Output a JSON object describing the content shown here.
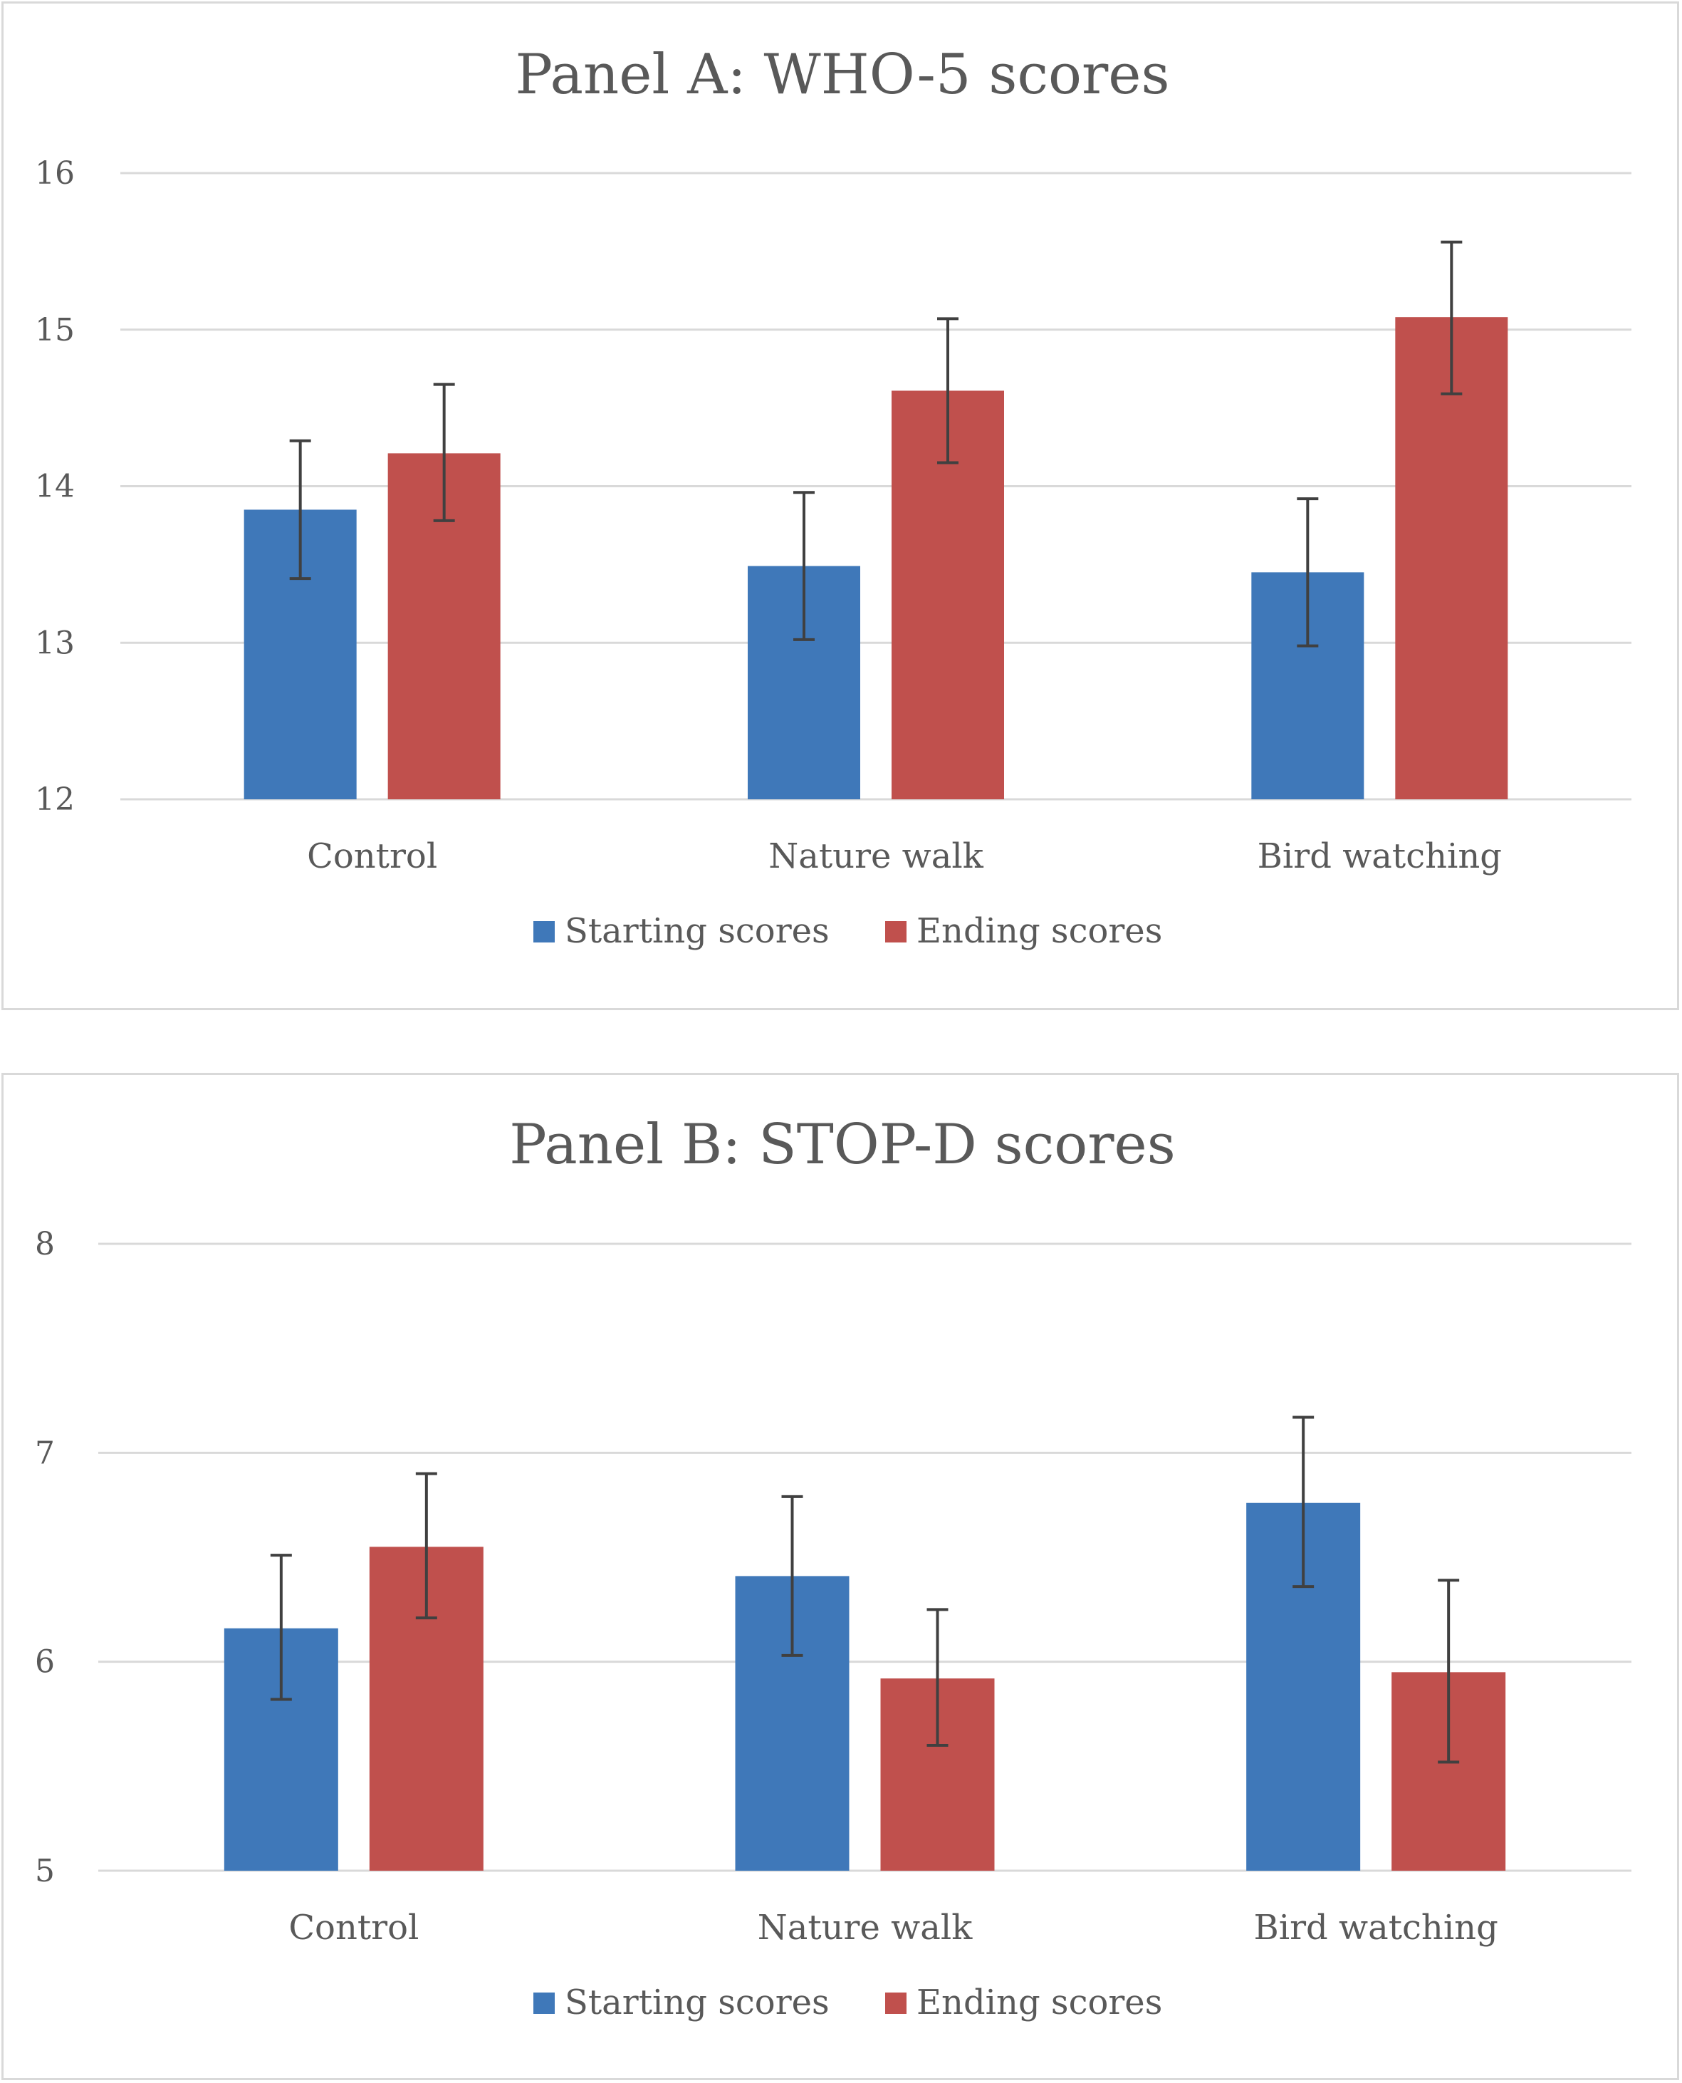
{
  "chart_data": [
    {
      "type": "bar",
      "title": "Panel A: WHO-5 scores",
      "categories": [
        "Control",
        "Nature walk",
        "Bird watching"
      ],
      "series": [
        {
          "name": "Starting scores",
          "color": "#3f78b9",
          "values": [
            13.85,
            13.49,
            13.45
          ],
          "error_low": [
            13.41,
            13.02,
            12.98
          ],
          "error_high": [
            14.29,
            13.96,
            13.92
          ]
        },
        {
          "name": "Ending scores",
          "color": "#c0504d",
          "values": [
            14.21,
            14.61,
            15.08
          ],
          "error_low": [
            13.78,
            14.15,
            14.59
          ],
          "error_high": [
            14.65,
            15.07,
            15.56
          ]
        }
      ],
      "ylim": [
        12,
        16
      ],
      "yticks": [
        "12",
        "13",
        "14",
        "15",
        "16"
      ],
      "ytick_values": [
        12,
        13,
        14,
        15,
        16
      ],
      "grid": true,
      "legend": "bottom"
    },
    {
      "type": "bar",
      "title": "Panel B: STOP-D scores",
      "categories": [
        "Control",
        "Nature walk",
        "Bird watching"
      ],
      "series": [
        {
          "name": "Starting scores",
          "color": "#3f78b9",
          "values": [
            6.16,
            6.41,
            6.76
          ],
          "error_low": [
            5.82,
            6.03,
            6.36
          ],
          "error_high": [
            6.51,
            6.79,
            7.17
          ]
        },
        {
          "name": "Ending scores",
          "color": "#c0504d",
          "values": [
            6.55,
            5.92,
            5.95
          ],
          "error_low": [
            6.21,
            5.6,
            5.52
          ],
          "error_high": [
            6.9,
            6.25,
            6.39
          ]
        }
      ],
      "ylim": [
        5,
        8
      ],
      "yticks": [
        "5",
        "6",
        "7",
        "8"
      ],
      "ytick_values": [
        5,
        6,
        7,
        8
      ],
      "grid": true,
      "legend": "bottom"
    }
  ]
}
